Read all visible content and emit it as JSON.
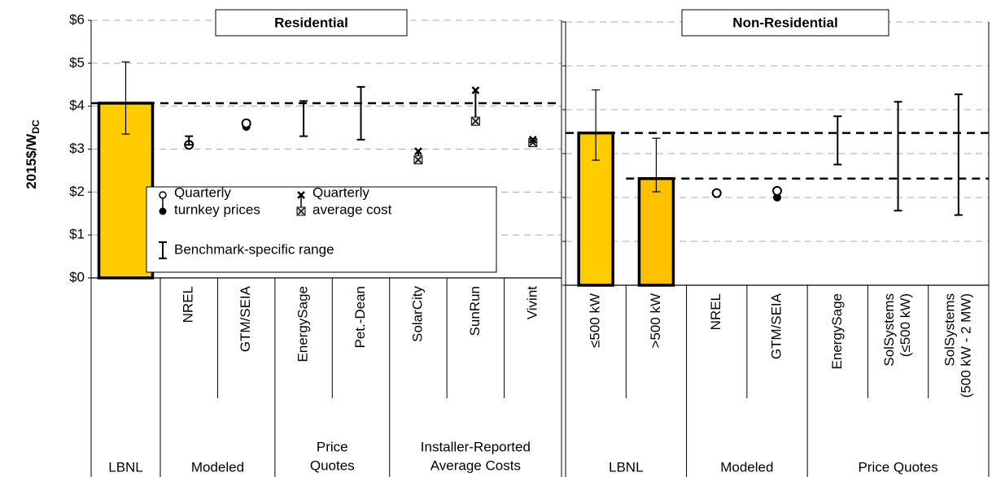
{
  "chart_data": [
    {
      "type": "benchmark",
      "title": "Residential",
      "y_label": "2015$/W",
      "y_label_subscript": "DC",
      "ylim": [
        0,
        6
      ],
      "yticks": [
        {
          "value": 0,
          "label": "$0"
        },
        {
          "value": 1,
          "label": "$1"
        },
        {
          "value": 2,
          "label": "$2"
        },
        {
          "value": 3,
          "label": "$3"
        },
        {
          "value": 4,
          "label": "$4"
        },
        {
          "value": 5,
          "label": "$5"
        },
        {
          "value": 6,
          "label": "$6"
        }
      ],
      "grid": true,
      "groups": [
        {
          "label": [
            "LBNL"
          ],
          "categories": [
            null
          ]
        },
        {
          "label": [
            "Modeled"
          ],
          "categories": [
            [
              "NREL"
            ],
            [
              "GTM/SEIA"
            ]
          ]
        },
        {
          "label": [
            "Price",
            "Quotes"
          ],
          "categories": [
            [
              "EnergySage"
            ],
            [
              "Pet.-Dean"
            ]
          ]
        },
        {
          "label": [
            "Installer-Reported",
            "Average Costs"
          ],
          "categories": [
            [
              "SolarCity"
            ],
            [
              "SunRun"
            ],
            [
              "Vivint"
            ]
          ]
        }
      ],
      "bars": {
        "values": [
          4.07,
          null,
          null,
          null,
          null,
          null,
          null,
          null
        ],
        "colors": [
          "#FFCC00",
          null,
          null,
          null,
          null,
          null,
          null,
          null
        ],
        "error_low": [
          3.35,
          null,
          null,
          null,
          null,
          null,
          null,
          null
        ],
        "error_high": [
          5.03,
          null,
          null,
          null,
          null,
          null,
          null,
          null
        ]
      },
      "series": [
        {
          "name": [
            "Quarterly",
            "turnkey prices"
          ],
          "marker": "turnkey",
          "color": "#000000",
          "values": [
            null,
            3.1,
            3.6,
            null,
            null,
            null,
            null,
            null
          ],
          "values2": [
            null,
            3.1,
            3.52,
            null,
            null,
            null,
            null,
            null
          ]
        },
        {
          "name": [
            "Quarterly",
            "average cost"
          ],
          "marker": "avgcost",
          "color": "#000000",
          "values": [
            null,
            null,
            null,
            null,
            null,
            2.95,
            4.37,
            3.22
          ],
          "values2": [
            null,
            null,
            null,
            null,
            null,
            2.75,
            3.65,
            3.15
          ]
        },
        {
          "name": [
            "Benchmark-specific range"
          ],
          "marker": "range",
          "color": "#000000",
          "values": [
            null,
            3.1,
            null,
            3.3,
            3.22,
            null,
            null,
            null
          ],
          "values2": [
            null,
            3.3,
            null,
            4.12,
            4.45,
            null,
            null,
            null
          ]
        }
      ]
    },
    {
      "type": "benchmark",
      "title": "Non-Residential",
      "ylim": [
        0,
        6
      ],
      "yticks": [
        0,
        1,
        2,
        3,
        4,
        5,
        6
      ],
      "grid": true,
      "groups": [
        {
          "label": [
            "LBNL"
          ],
          "categories": [
            [
              "≤500 kW"
            ],
            [
              ">500 kW"
            ]
          ]
        },
        {
          "label": [
            "Modeled"
          ],
          "categories": [
            [
              "NREL"
            ],
            [
              "GTM/SEIA"
            ]
          ]
        },
        {
          "label": [
            "Price Quotes"
          ],
          "categories": [
            [
              "EnergySage"
            ],
            [
              "SolSystems",
              "(≤500 kW)"
            ],
            [
              "SolSystems",
              "(500 kW - 2 MW)"
            ]
          ]
        }
      ],
      "bars": {
        "values": [
          3.47,
          2.43,
          null,
          null,
          null,
          null,
          null
        ],
        "colors": [
          "#FFCC00",
          "#FFC000",
          null,
          null,
          null,
          null,
          null
        ],
        "error_low": [
          2.85,
          2.13,
          null,
          null,
          null,
          null,
          null
        ],
        "error_high": [
          4.45,
          3.35,
          null,
          null,
          null,
          null,
          null
        ]
      },
      "series": [
        {
          "marker": "turnkey",
          "color": "#000000",
          "values": [
            null,
            null,
            2.1,
            2.15,
            null,
            null,
            null
          ],
          "values2": [
            null,
            null,
            2.08,
            2.0,
            null,
            null,
            null
          ]
        },
        {
          "marker": "range",
          "color": "#000000",
          "values": [
            null,
            null,
            null,
            null,
            2.75,
            1.7,
            1.6
          ],
          "values2": [
            null,
            null,
            null,
            null,
            3.85,
            4.18,
            4.35
          ]
        }
      ]
    }
  ]
}
